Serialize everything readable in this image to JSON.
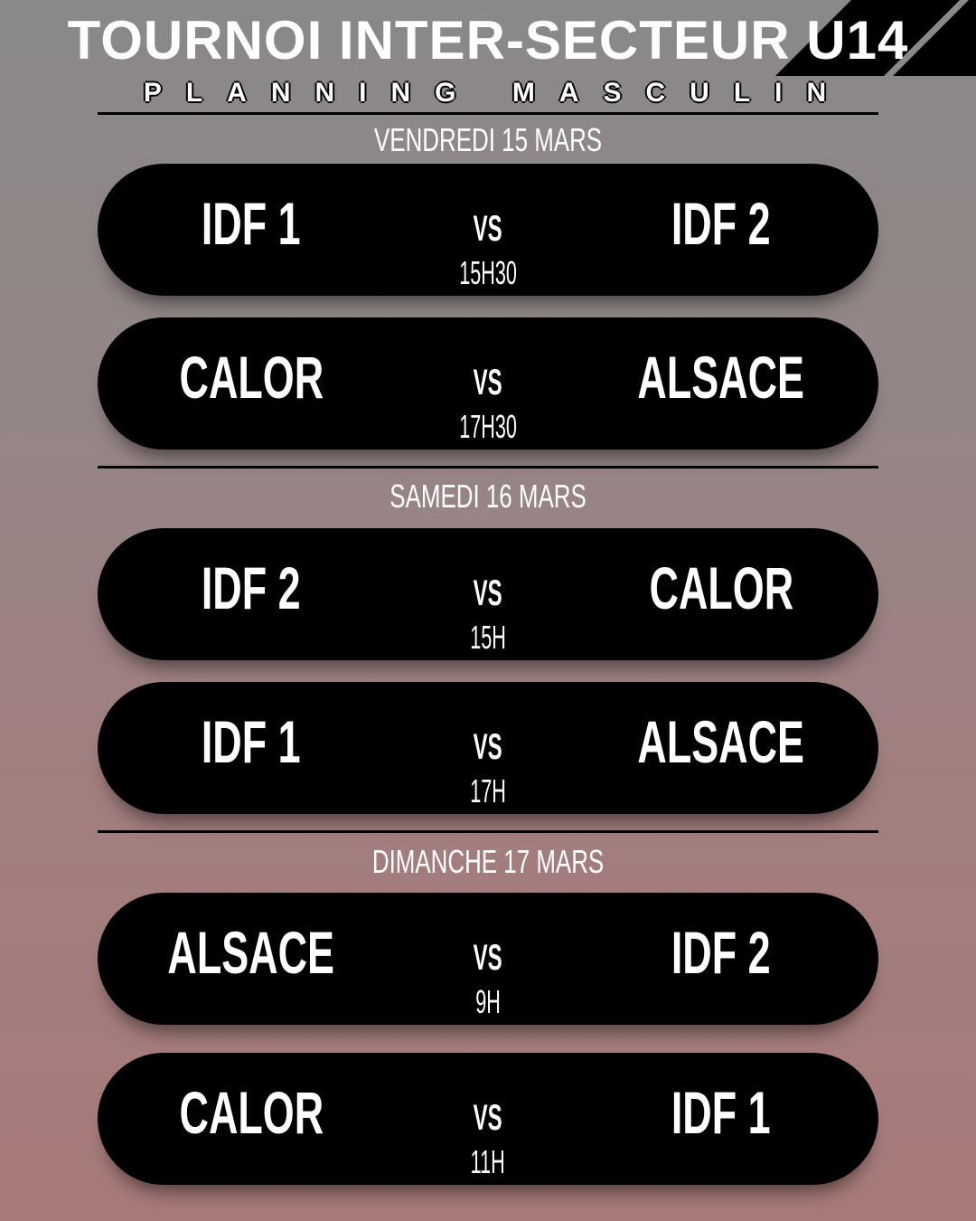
{
  "title": "TOURNOI INTER-SECTEUR U14",
  "subtitle": "PLANNING MASCULIN",
  "colors": {
    "background_top": "#8a8888",
    "background_bottom": "#a87a7a",
    "pill": "#000000",
    "text": "#ffffff"
  },
  "vs_label": "VS",
  "days": [
    {
      "label": "VENDREDI 15 MARS",
      "matches": [
        {
          "home": "IDF 1",
          "away": "IDF 2",
          "time": "15H30"
        },
        {
          "home": "CALOR",
          "away": "ALSACE",
          "time": "17H30"
        }
      ]
    },
    {
      "label": "SAMEDI 16 MARS",
      "matches": [
        {
          "home": "IDF 2",
          "away": "CALOR",
          "time": "15H"
        },
        {
          "home": "IDF 1",
          "away": "ALSACE",
          "time": "17H"
        }
      ]
    },
    {
      "label": "DIMANCHE 17 MARS",
      "matches": [
        {
          "home": "ALSACE",
          "away": "IDF 2",
          "time": "9H"
        },
        {
          "home": "CALOR",
          "away": "IDF 1",
          "time": "11H"
        }
      ]
    }
  ]
}
